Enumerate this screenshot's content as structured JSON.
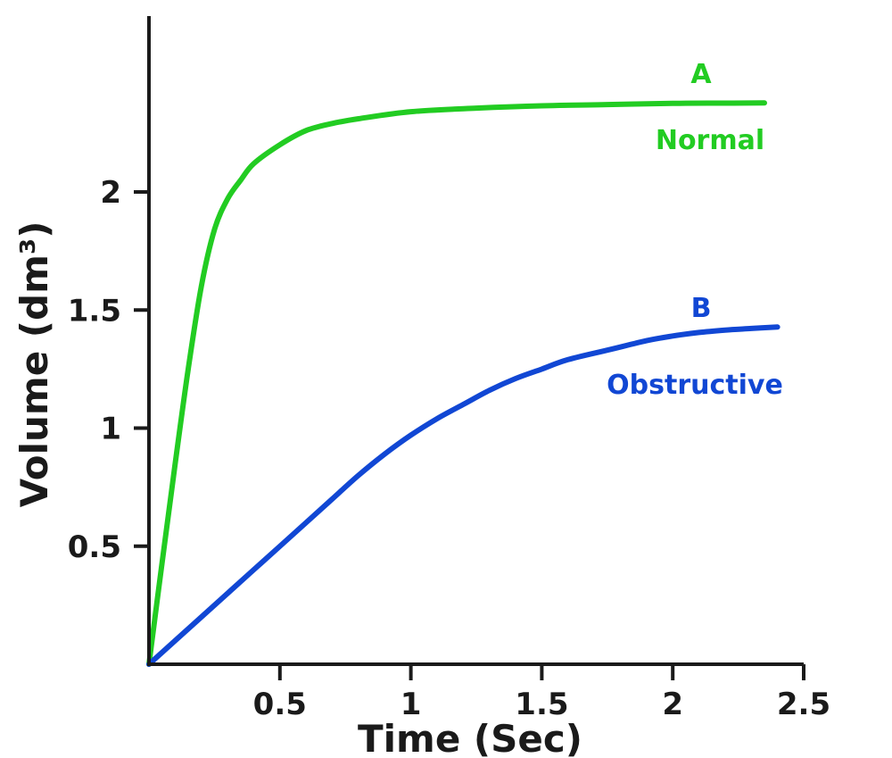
{
  "chart_data": {
    "type": "line",
    "title": "",
    "xlabel": "Time (Sec)",
    "ylabel": "Volume (dm³)",
    "xlim": [
      0,
      2.5
    ],
    "ylim": [
      0,
      2.75
    ],
    "grid": false,
    "x_ticks": [
      0.5,
      1,
      1.5,
      2,
      2.5
    ],
    "x_tick_labels": [
      "0.5",
      "1",
      "1.5",
      "2",
      "2.5"
    ],
    "y_ticks": [
      0.5,
      1,
      1.5,
      2
    ],
    "y_tick_labels": [
      "0.5",
      "1",
      "1.5",
      "2"
    ],
    "series": [
      {
        "name": "A",
        "description": "Normal",
        "color": "#22cc22",
        "x": [
          0,
          0.05,
          0.1,
          0.15,
          0.2,
          0.25,
          0.3,
          0.35,
          0.4,
          0.5,
          0.6,
          0.7,
          0.8,
          1.0,
          1.25,
          1.5,
          1.75,
          2.0,
          2.2,
          2.35
        ],
        "y": [
          0,
          0.43,
          0.85,
          1.25,
          1.6,
          1.84,
          1.97,
          2.05,
          2.12,
          2.2,
          2.26,
          2.29,
          2.31,
          2.34,
          2.355,
          2.365,
          2.37,
          2.375,
          2.376,
          2.377
        ]
      },
      {
        "name": "B",
        "description": "Obstructive",
        "color": "#1147d4",
        "x": [
          0,
          0.1,
          0.2,
          0.3,
          0.4,
          0.5,
          0.6,
          0.7,
          0.8,
          0.9,
          1.0,
          1.1,
          1.2,
          1.3,
          1.4,
          1.5,
          1.6,
          1.75,
          1.9,
          2.0,
          2.1,
          2.2,
          2.3,
          2.4
        ],
        "y": [
          0,
          0.1,
          0.2,
          0.3,
          0.4,
          0.5,
          0.6,
          0.7,
          0.8,
          0.89,
          0.97,
          1.04,
          1.1,
          1.16,
          1.21,
          1.25,
          1.29,
          1.33,
          1.37,
          1.39,
          1.405,
          1.415,
          1.422,
          1.428
        ]
      }
    ]
  }
}
